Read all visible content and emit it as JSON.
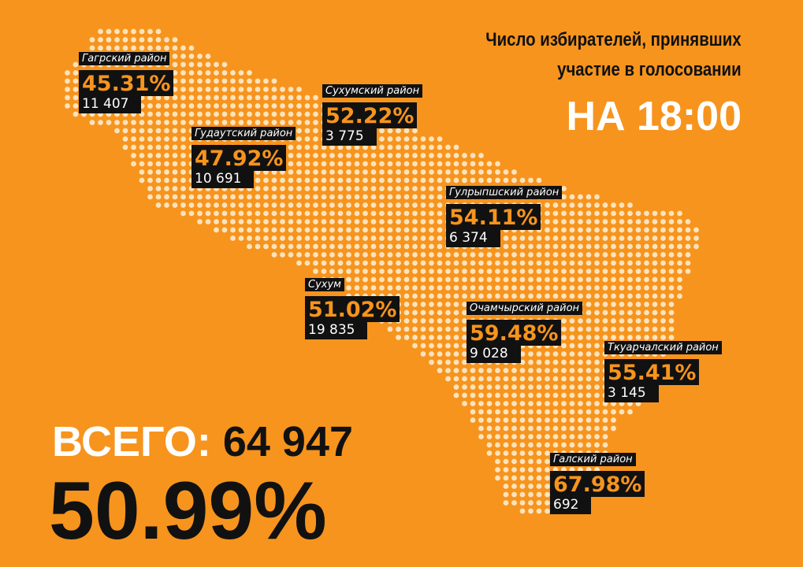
{
  "header": {
    "title_lines": [
      "Число избирателей, принявших",
      "участие в голосовании"
    ],
    "time": "НА 18:00"
  },
  "regions": [
    {
      "name": "Гагрский район",
      "percent": "45.31%",
      "count": "11 407"
    },
    {
      "name": "Гудаутский район",
      "percent": "47.92%",
      "count": "10 691"
    },
    {
      "name": "Сухумский район",
      "percent": "52.22%",
      "count": "3 775"
    },
    {
      "name": "Гулрыпшский район",
      "percent": "54.11%",
      "count": "6 374"
    },
    {
      "name": "Сухум",
      "percent": "51.02%",
      "count": "19 835"
    },
    {
      "name": "Очамчырский район",
      "percent": "59.48%",
      "count": "9 028"
    },
    {
      "name": "Ткуарчалский район",
      "percent": "55.41%",
      "count": "3 145"
    },
    {
      "name": "Галский район",
      "percent": "67.98%",
      "count": "692"
    }
  ],
  "total": {
    "label": "ВСЕГО:",
    "count": "64 947",
    "percent": "50.99%"
  }
}
